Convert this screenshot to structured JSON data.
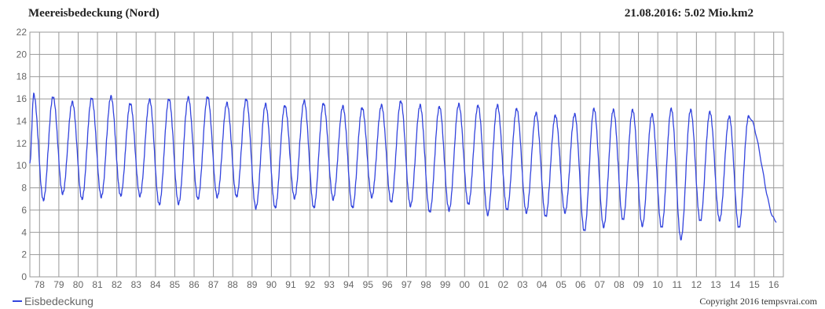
{
  "header": {
    "title": "Meereisbedeckung (Nord)",
    "latest_reading": "21.08.2016: 5.02 Mio.km2"
  },
  "footer": {
    "legend_label": "Eisbedeckung",
    "copyright": "Copyright 2016 tempsvrai.com"
  },
  "colors": {
    "series": "#3344dd",
    "grid": "#999999",
    "text": "#666666"
  },
  "chart_data": {
    "type": "line",
    "title": "Meereisbedeckung (Nord)",
    "xlabel": "",
    "ylabel": "",
    "ylim": [
      0,
      22
    ],
    "y_ticks": [
      0,
      2,
      4,
      6,
      8,
      10,
      12,
      14,
      16,
      18,
      20,
      22
    ],
    "x_tick_labels": [
      "78",
      "79",
      "80",
      "81",
      "82",
      "83",
      "84",
      "85",
      "86",
      "87",
      "88",
      "89",
      "90",
      "91",
      "92",
      "93",
      "94",
      "95",
      "96",
      "97",
      "98",
      "99",
      "00",
      "01",
      "02",
      "03",
      "04",
      "05",
      "06",
      "07",
      "08",
      "09",
      "10",
      "11",
      "12",
      "13",
      "14",
      "15",
      "16"
    ],
    "grid": true,
    "legend_position": "bottom-left",
    "series": [
      {
        "name": "Eisbedeckung",
        "annual_max": [
          16.4,
          16.2,
          15.7,
          16.1,
          16.2,
          15.6,
          15.9,
          16.0,
          16.1,
          16.2,
          15.6,
          16.0,
          15.5,
          15.4,
          15.8,
          15.6,
          15.3,
          15.2,
          15.4,
          15.8,
          15.4,
          15.3,
          15.5,
          15.4,
          15.4,
          15.1,
          14.7,
          14.5,
          14.6,
          15.1,
          15.0,
          15.0,
          14.6,
          15.1,
          15.0,
          14.8,
          14.4,
          14.4
        ],
        "annual_min": [
          6.9,
          7.5,
          7.0,
          7.2,
          7.3,
          7.3,
          6.5,
          6.6,
          7.0,
          7.2,
          7.2,
          6.2,
          6.2,
          7.1,
          6.2,
          7.0,
          6.2,
          7.2,
          6.7,
          6.4,
          5.8,
          6.0,
          6.5,
          5.6,
          6.0,
          5.8,
          5.4,
          5.8,
          4.1,
          4.5,
          5.1,
          4.6,
          4.4,
          3.4,
          5.0,
          5.1,
          4.4
        ],
        "start_value": 10.2,
        "end_value": 5.02
      }
    ]
  }
}
